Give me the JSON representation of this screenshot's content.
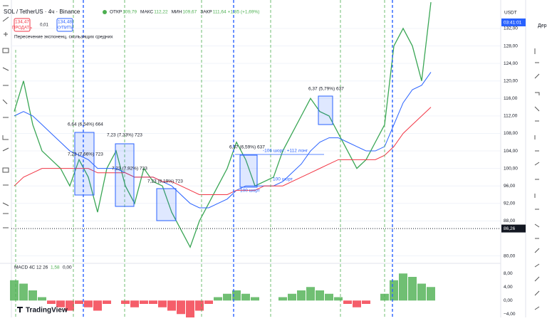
{
  "header": {
    "symbol": "SOL / TetherUS · 4ч · Binance",
    "ohlc": [
      {
        "label": "ОТКР",
        "value": "109,79"
      },
      {
        "label": "МАКС",
        "value": "112,22"
      },
      {
        "label": "МИН",
        "value": "109,67"
      },
      {
        "label": "ЗАКР",
        "value": "111,64"
      }
    ],
    "change": "+1,85 (+1,69%)"
  },
  "trade": {
    "sell_price": "134,47",
    "sell": "ПРОДАТЬ",
    "qty": "0,01",
    "buy_price": "134,48",
    "buy": "КУПИТЬ"
  },
  "indicator": "Пересечение экспоненц. скользящих средних",
  "annotations": [
    "6,64 (6,54%) 664",
    "7,23 (7,33%) 723",
    "7,23 (7,66%) 723",
    "7,23 (7,92%) 723",
    "7,23 (8,19%) 723",
    "6,37 (6,59%) 637",
    "6,37 (5,79%) 637",
    "-106 шорт; +112 лонг",
    "100 шорт",
    "100 шорт"
  ],
  "price_axis": {
    "currency": "USDT",
    "timer": "03:41:01",
    "last": {
      "value": 86.26,
      "label": "86,26"
    }
  },
  "chart_data": {
    "type": "line",
    "series": [
      {
        "name": "SOL",
        "color": "#3aa655",
        "values": [
          113,
          120,
          110,
          104,
          102,
          100,
          96,
          102,
          98,
          90,
          100,
          104,
          96,
          92,
          100,
          97,
          96,
          90,
          86,
          82,
          88,
          92,
          96,
          100,
          106,
          102,
          96,
          97,
          98,
          104,
          108,
          112,
          116,
          113,
          112,
          108,
          104,
          100,
          102,
          106,
          110,
          128,
          132,
          128,
          120,
          138
        ]
      },
      {
        "name": "EMA",
        "color": "#2962ff",
        "values": [
          112,
          113,
          112,
          110,
          108,
          106,
          104,
          103,
          102,
          100,
          100,
          100,
          99,
          98,
          98,
          98,
          97,
          96,
          94,
          92,
          91,
          91,
          92,
          93,
          95,
          96,
          96,
          96,
          96,
          97,
          99,
          101,
          104,
          106,
          107,
          107,
          106,
          105,
          104,
          104,
          105,
          110,
          115,
          118,
          119,
          122
        ]
      },
      {
        "name": "EMA",
        "color": "#f23645",
        "values": [
          96,
          98,
          99,
          100,
          100,
          100,
          100,
          100,
          100,
          99,
          99,
          99,
          99,
          98,
          98,
          98,
          97,
          97,
          96,
          95,
          94,
          94,
          94,
          94,
          95,
          95,
          95,
          96,
          96,
          96,
          97,
          98,
          99,
          100,
          101,
          102,
          102,
          102,
          102,
          102,
          103,
          105,
          108,
          110,
          112,
          114
        ]
      }
    ],
    "ylim": [
      78.3,
      138.5
    ],
    "yticks": [
      {
        "value": 132,
        "label": "132,00"
      },
      {
        "value": 128,
        "label": "128,00"
      },
      {
        "value": 124,
        "label": "124,00"
      },
      {
        "value": 120,
        "label": "120,00"
      },
      {
        "value": 116,
        "label": "116,00"
      },
      {
        "value": 112,
        "label": "112,00"
      },
      {
        "value": 108,
        "label": "108,00"
      },
      {
        "value": 104,
        "label": "104,00"
      },
      {
        "value": 100,
        "label": "100,00"
      },
      {
        "value": 96,
        "label": "96,00"
      },
      {
        "value": 92,
        "label": "92,00"
      },
      {
        "value": 88,
        "label": "88,00"
      },
      {
        "value": 80,
        "label": "80,00"
      }
    ]
  },
  "macd": {
    "title": "MACD 4C 12 26",
    "value": "1,58",
    "zero": "0,00",
    "values": [
      6,
      5,
      3,
      1,
      -1,
      -2,
      -3,
      -1,
      -2,
      -3,
      -1,
      0,
      -1,
      -2,
      -1,
      -1,
      -2,
      -3,
      -4,
      -5,
      -3,
      -1,
      1,
      2,
      3,
      2,
      1,
      0,
      0,
      1,
      2,
      3,
      4,
      3,
      2,
      1,
      -1,
      -2,
      -1,
      0,
      2,
      6,
      8,
      7,
      5,
      4
    ],
    "ylim": [
      -5,
      11
    ],
    "yticks": [
      {
        "value": 8,
        "label": "8,00"
      },
      {
        "value": 4,
        "label": "4,00"
      },
      {
        "value": 0,
        "label": "0,00"
      },
      {
        "value": -4,
        "label": "−4,00"
      }
    ],
    "up_color": "#4caf50",
    "down_color": "#f23645"
  },
  "right_panel": "Дер",
  "logo": "TradingView"
}
